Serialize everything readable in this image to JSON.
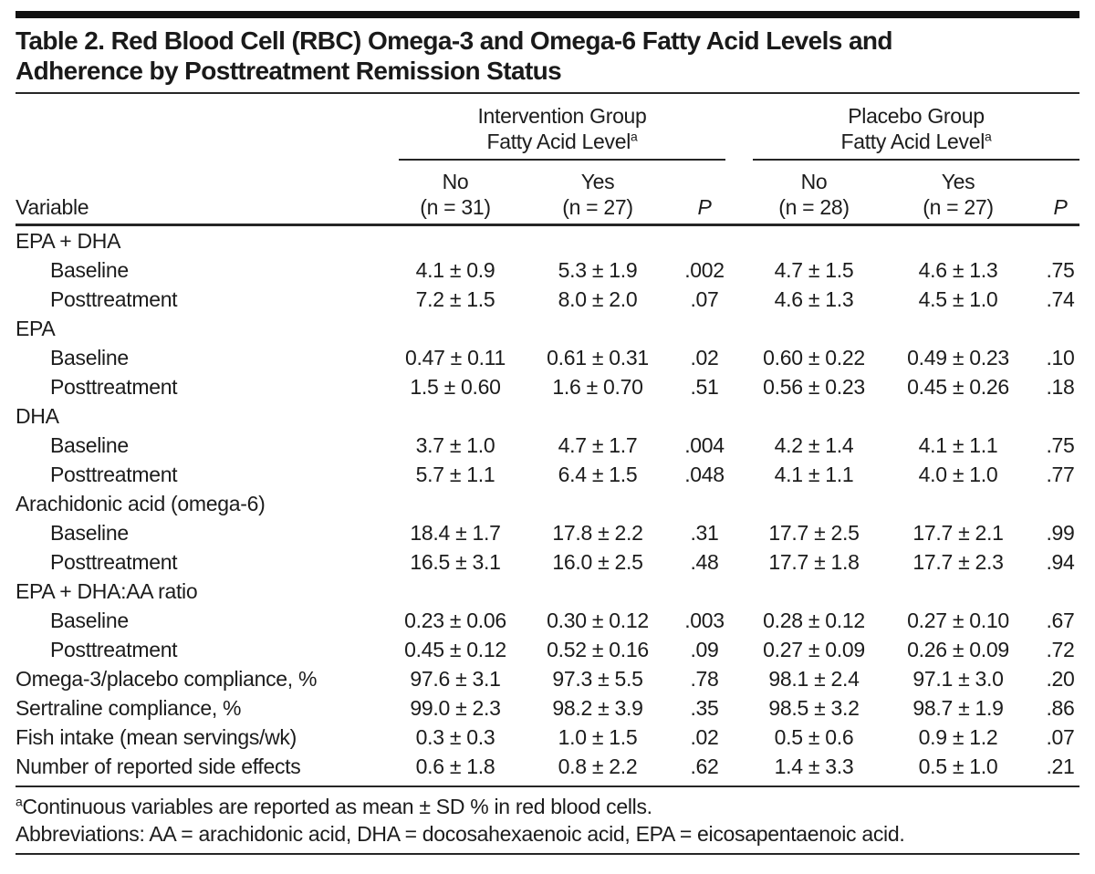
{
  "colors": {
    "text": "#1c1c1c",
    "rule": "#262626",
    "top_bar": "#111111",
    "background": "#ffffff"
  },
  "title": {
    "lines": [
      "Table 2. Red Blood Cell (RBC) Omega-3 and Omega-6 Fatty Acid Levels and",
      "Adherence by Posttreatment Remission Status"
    ]
  },
  "header": {
    "variable_label": "Variable",
    "groups": [
      {
        "line1": "Intervention Group",
        "line2": "Fatty Acid Level",
        "footnote_marker": "a"
      },
      {
        "line1": "Placebo Group",
        "line2": "Fatty Acid Level",
        "footnote_marker": "a"
      }
    ],
    "subcolumns": [
      {
        "line1": "No",
        "line2": "(n = 31)"
      },
      {
        "line1": "Yes",
        "line2": "(n = 27)"
      },
      {
        "line1": "P"
      },
      {
        "line1": "No",
        "line2": "(n = 28)"
      },
      {
        "line1": "Yes",
        "line2": "(n = 27)"
      },
      {
        "line1": "P"
      }
    ]
  },
  "rows": [
    {
      "label": "EPA + DHA",
      "indent": 0,
      "values": []
    },
    {
      "label": "Baseline",
      "indent": 1,
      "values": [
        "4.1 ± 0.9",
        "5.3 ± 1.9",
        ".002",
        "4.7 ± 1.5",
        "4.6 ± 1.3",
        ".75"
      ]
    },
    {
      "label": "Posttreatment",
      "indent": 1,
      "values": [
        "7.2 ± 1.5",
        "8.0 ± 2.0",
        ".07",
        "4.6 ± 1.3",
        "4.5 ± 1.0",
        ".74"
      ]
    },
    {
      "label": "EPA",
      "indent": 0,
      "values": []
    },
    {
      "label": "Baseline",
      "indent": 1,
      "values": [
        "0.47 ± 0.11",
        "0.61 ± 0.31",
        ".02",
        "0.60 ± 0.22",
        "0.49 ± 0.23",
        ".10"
      ]
    },
    {
      "label": "Posttreatment",
      "indent": 1,
      "values": [
        "1.5 ± 0.60",
        "1.6 ± 0.70",
        ".51",
        "0.56 ± 0.23",
        "0.45 ± 0.26",
        ".18"
      ]
    },
    {
      "label": "DHA",
      "indent": 0,
      "values": []
    },
    {
      "label": "Baseline",
      "indent": 1,
      "values": [
        "3.7 ± 1.0",
        "4.7 ± 1.7",
        ".004",
        "4.2 ± 1.4",
        "4.1 ± 1.1",
        ".75"
      ]
    },
    {
      "label": "Posttreatment",
      "indent": 1,
      "values": [
        "5.7 ± 1.1",
        "6.4 ± 1.5",
        ".048",
        "4.1 ± 1.1",
        "4.0 ± 1.0",
        ".77"
      ]
    },
    {
      "label": "Arachidonic acid (omega-6)",
      "indent": 0,
      "values": []
    },
    {
      "label": "Baseline",
      "indent": 1,
      "values": [
        "18.4 ± 1.7",
        "17.8 ± 2.2",
        ".31",
        "17.7 ± 2.5",
        "17.7 ± 2.1",
        ".99"
      ]
    },
    {
      "label": "Posttreatment",
      "indent": 1,
      "values": [
        "16.5 ± 3.1",
        "16.0 ± 2.5",
        ".48",
        "17.7 ± 1.8",
        "17.7 ± 2.3",
        ".94"
      ]
    },
    {
      "label": "EPA + DHA:AA ratio",
      "indent": 0,
      "values": []
    },
    {
      "label": "Baseline",
      "indent": 1,
      "values": [
        "0.23 ± 0.06",
        "0.30 ± 0.12",
        ".003",
        "0.28 ± 0.12",
        "0.27 ± 0.10",
        ".67"
      ]
    },
    {
      "label": "Posttreatment",
      "indent": 1,
      "values": [
        "0.45 ± 0.12",
        "0.52 ± 0.16",
        ".09",
        "0.27 ± 0.09",
        "0.26 ± 0.09",
        ".72"
      ]
    },
    {
      "label": "Omega-3/placebo compliance, %",
      "indent": 0,
      "values": [
        "97.6 ± 3.1",
        "97.3 ± 5.5",
        ".78",
        "98.1 ± 2.4",
        "97.1 ± 3.0",
        ".20"
      ]
    },
    {
      "label": "Sertraline compliance, %",
      "indent": 0,
      "values": [
        "99.0 ± 2.3",
        "98.2 ± 3.9",
        ".35",
        "98.5 ± 3.2",
        "98.7 ± 1.9",
        ".86"
      ]
    },
    {
      "label": "Fish intake (mean servings/wk)",
      "indent": 0,
      "values": [
        "0.3 ± 0.3",
        "1.0 ± 1.5",
        ".02",
        "0.5 ± 0.6",
        "0.9 ± 1.2",
        ".07"
      ]
    },
    {
      "label": "Number of reported side effects",
      "indent": 0,
      "values": [
        "0.6 ± 1.8",
        "0.8 ± 2.2",
        ".62",
        "1.4 ± 3.3",
        "0.5 ± 1.0",
        ".21"
      ]
    }
  ],
  "footnotes": {
    "marker": "a",
    "note1": "Continuous variables are reported as mean ± SD % in red blood cells.",
    "note2": "Abbreviations: AA = arachidonic acid, DHA = docosahexaenoic acid, EPA = eicosapentaenoic acid."
  },
  "chart_data": {
    "type": "table",
    "title": "Table 2. Red Blood Cell (RBC) Omega-3 and Omega-6 Fatty Acid Levels and Adherence by Posttreatment Remission Status",
    "column_groups": [
      "Intervention Group Fatty Acid Level",
      "Placebo Group Fatty Acid Level"
    ],
    "columns": [
      "Variable",
      "No (n = 31)",
      "Yes (n = 27)",
      "P",
      "No (n = 28)",
      "Yes (n = 27)",
      "P"
    ],
    "rows": [
      [
        "EPA + DHA",
        "",
        "",
        "",
        "",
        "",
        ""
      ],
      [
        "Baseline",
        "4.1 ± 0.9",
        "5.3 ± 1.9",
        ".002",
        "4.7 ± 1.5",
        "4.6 ± 1.3",
        ".75"
      ],
      [
        "Posttreatment",
        "7.2 ± 1.5",
        "8.0 ± 2.0",
        ".07",
        "4.6 ± 1.3",
        "4.5 ± 1.0",
        ".74"
      ],
      [
        "EPA",
        "",
        "",
        "",
        "",
        "",
        ""
      ],
      [
        "Baseline",
        "0.47 ± 0.11",
        "0.61 ± 0.31",
        ".02",
        "0.60 ± 0.22",
        "0.49 ± 0.23",
        ".10"
      ],
      [
        "Posttreatment",
        "1.5 ± 0.60",
        "1.6 ± 0.70",
        ".51",
        "0.56 ± 0.23",
        "0.45 ± 0.26",
        ".18"
      ],
      [
        "DHA",
        "",
        "",
        "",
        "",
        "",
        ""
      ],
      [
        "Baseline",
        "3.7 ± 1.0",
        "4.7 ± 1.7",
        ".004",
        "4.2 ± 1.4",
        "4.1 ± 1.1",
        ".75"
      ],
      [
        "Posttreatment",
        "5.7 ± 1.1",
        "6.4 ± 1.5",
        ".048",
        "4.1 ± 1.1",
        "4.0 ± 1.0",
        ".77"
      ],
      [
        "Arachidonic acid (omega-6)",
        "",
        "",
        "",
        "",
        "",
        ""
      ],
      [
        "Baseline",
        "18.4 ± 1.7",
        "17.8 ± 2.2",
        ".31",
        "17.7 ± 2.5",
        "17.7 ± 2.1",
        ".99"
      ],
      [
        "Posttreatment",
        "16.5 ± 3.1",
        "16.0 ± 2.5",
        ".48",
        "17.7 ± 1.8",
        "17.7 ± 2.3",
        ".94"
      ],
      [
        "EPA + DHA:AA ratio",
        "",
        "",
        "",
        "",
        "",
        ""
      ],
      [
        "Baseline",
        "0.23 ± 0.06",
        "0.30 ± 0.12",
        ".003",
        "0.28 ± 0.12",
        "0.27 ± 0.10",
        ".67"
      ],
      [
        "Posttreatment",
        "0.45 ± 0.12",
        "0.52 ± 0.16",
        ".09",
        "0.27 ± 0.09",
        "0.26 ± 0.09",
        ".72"
      ],
      [
        "Omega-3/placebo compliance, %",
        "97.6 ± 3.1",
        "97.3 ± 5.5",
        ".78",
        "98.1 ± 2.4",
        "97.1 ± 3.0",
        ".20"
      ],
      [
        "Sertraline compliance, %",
        "99.0 ± 2.3",
        "98.2 ± 3.9",
        ".35",
        "98.5 ± 3.2",
        "98.7 ± 1.9",
        ".86"
      ],
      [
        "Fish intake (mean servings/wk)",
        "0.3 ± 0.3",
        "1.0 ± 1.5",
        ".02",
        "0.5 ± 0.6",
        "0.9 ± 1.2",
        ".07"
      ],
      [
        "Number of reported side effects",
        "0.6 ± 1.8",
        "0.8 ± 2.2",
        ".62",
        "1.4 ± 3.3",
        "0.5 ± 1.0",
        ".21"
      ]
    ]
  }
}
